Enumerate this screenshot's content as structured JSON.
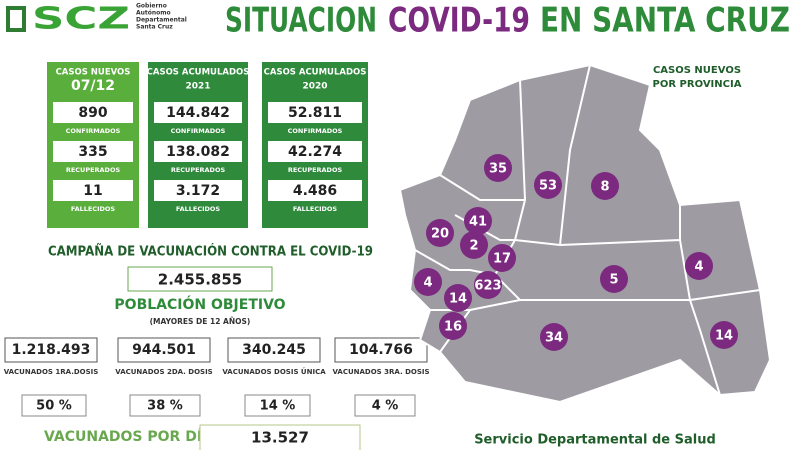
{
  "logo": {
    "mark": "SCZ",
    "lines": [
      "Gobierno",
      "Autónomo",
      "Departamental",
      "Santa Cruz"
    ]
  },
  "title": {
    "part1": "SITUACION",
    "part2": "COVID-19",
    "part3": "EN SANTA CRUZ"
  },
  "boxes": [
    {
      "header": "CASOS NUEVOS",
      "period": "07/12",
      "items": [
        {
          "value": "890",
          "label": "CONFIRMADOS"
        },
        {
          "value": "335",
          "label": "RECUPERADOS"
        },
        {
          "value": "11",
          "label": "FALLECIDOS"
        }
      ]
    },
    {
      "header": "CASOS ACUMULADOS",
      "period": "2021",
      "items": [
        {
          "value": "144.842",
          "label": "CONFIRMADOS"
        },
        {
          "value": "138.082",
          "label": "RECUPERADOS"
        },
        {
          "value": "3.172",
          "label": "FALLECIDOS"
        }
      ]
    },
    {
      "header": "CASOS ACUMULADOS",
      "period": "2020",
      "items": [
        {
          "value": "52.811",
          "label": "CONFIRMADOS"
        },
        {
          "value": "42.274",
          "label": "RECUPERADOS"
        },
        {
          "value": "4.486",
          "label": "FALLECIDOS"
        }
      ]
    }
  ],
  "campaign": {
    "title": "CAMPAÑA DE VACUNACIÓN CONTRA EL COVID-19",
    "population": "2.455.855",
    "population_label": "POBLACIÓN OBJETIVO",
    "population_note": "(MAYORES DE 12 AÑOS)",
    "doses": [
      {
        "value": "1.218.493",
        "label": "VACUNADOS 1RA.DOSIS",
        "percent": "50 %"
      },
      {
        "value": "944.501",
        "label": "VACUNADOS 2DA. DOSIS",
        "percent": "38 %"
      },
      {
        "value": "340.245",
        "label": "VACUNADOS DOSIS ÚNICA",
        "percent": "14 %"
      },
      {
        "value": "104.766",
        "label": "VACUNADOS 3RA. DOSIS",
        "percent": "4 %"
      }
    ],
    "daily_label": "VACUNADOS POR DÍA",
    "daily_value": "13.527"
  },
  "map": {
    "title": [
      "CASOS NUEVOS",
      "POR PROVINCIA"
    ],
    "provinces": [
      "35",
      "53",
      "8",
      "41",
      "20",
      "2",
      "17",
      "4",
      "623",
      "14",
      "5",
      "4",
      "16",
      "34",
      "14"
    ]
  },
  "footer": "Servicio Departamental de Salud"
}
